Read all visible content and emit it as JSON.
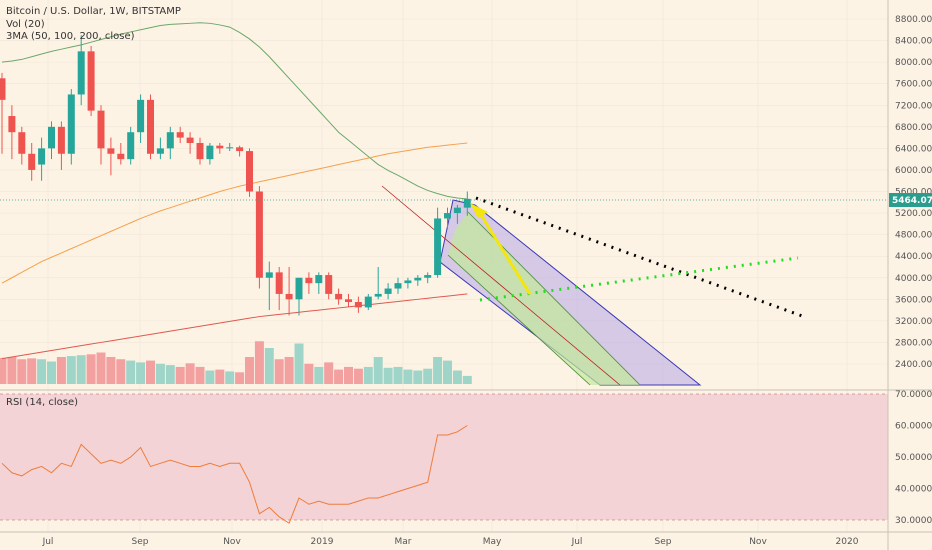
{
  "legend": {
    "title": "Bitcoin / U.S. Dollar, 1W, BITSTAMP",
    "vol": "Vol (20)",
    "ma": "3MA (50, 100, 200, close)",
    "rsi": "RSI (14, close)"
  },
  "colors": {
    "background": "#fdf3e5",
    "up": "#26a69a",
    "down": "#ef5350",
    "vol_up": "#9fd4c8",
    "vol_down": "#f2a0a0",
    "ma50": "#6aa86a",
    "ma100": "#f5a04a",
    "ma200": "#e0584f",
    "rsi_band": "#f3d3d6",
    "rsi_line": "#f07c3a",
    "price_tag": "#2a9d8f"
  },
  "chart_data": {
    "type": "candlestick",
    "title": "Bitcoin / U.S. Dollar, 1W, BITSTAMP",
    "current_price": "5464.07",
    "price_ticks": [
      "8800.00",
      "8400.00",
      "8000.00",
      "7600.00",
      "7200.00",
      "6800.00",
      "6400.00",
      "6000.00",
      "5600.00",
      "5200.00",
      "4800.00",
      "4400.00",
      "4000.00",
      "3600.00",
      "3200.00",
      "2800.00",
      "2400.00"
    ],
    "rsi_ticks": [
      "70.0000",
      "60.0000",
      "50.0000",
      "40.0000",
      "30.0000"
    ],
    "x_labels": [
      "Jul",
      "Sep",
      "Nov",
      "2019",
      "Mar",
      "May",
      "Jul",
      "Sep",
      "Nov",
      "2020"
    ],
    "candles": [
      {
        "o": 7700,
        "h": 7800,
        "l": 6300,
        "c": 7300
      },
      {
        "o": 7000,
        "h": 7200,
        "l": 6200,
        "c": 6700
      },
      {
        "o": 6700,
        "h": 6800,
        "l": 6100,
        "c": 6300
      },
      {
        "o": 6300,
        "h": 6500,
        "l": 5800,
        "c": 6000
      },
      {
        "o": 6100,
        "h": 6600,
        "l": 5800,
        "c": 6400
      },
      {
        "o": 6400,
        "h": 6900,
        "l": 6200,
        "c": 6800
      },
      {
        "o": 6800,
        "h": 6900,
        "l": 6000,
        "c": 6300
      },
      {
        "o": 6300,
        "h": 7500,
        "l": 6100,
        "c": 7400
      },
      {
        "o": 7400,
        "h": 8500,
        "l": 7200,
        "c": 8200
      },
      {
        "o": 8200,
        "h": 8300,
        "l": 7000,
        "c": 7100
      },
      {
        "o": 7100,
        "h": 7200,
        "l": 6100,
        "c": 6400
      },
      {
        "o": 6400,
        "h": 6600,
        "l": 5900,
        "c": 6300
      },
      {
        "o": 6300,
        "h": 6500,
        "l": 6100,
        "c": 6200
      },
      {
        "o": 6200,
        "h": 6800,
        "l": 6100,
        "c": 6700
      },
      {
        "o": 6700,
        "h": 7400,
        "l": 6500,
        "c": 7300
      },
      {
        "o": 7300,
        "h": 7400,
        "l": 6200,
        "c": 6300
      },
      {
        "o": 6300,
        "h": 6600,
        "l": 6200,
        "c": 6400
      },
      {
        "o": 6400,
        "h": 6800,
        "l": 6200,
        "c": 6700
      },
      {
        "o": 6700,
        "h": 6800,
        "l": 6500,
        "c": 6600
      },
      {
        "o": 6600,
        "h": 6700,
        "l": 6300,
        "c": 6500
      },
      {
        "o": 6500,
        "h": 6600,
        "l": 6100,
        "c": 6200
      },
      {
        "o": 6200,
        "h": 6500,
        "l": 6100,
        "c": 6450
      },
      {
        "o": 6450,
        "h": 6500,
        "l": 6300,
        "c": 6400
      },
      {
        "o": 6400,
        "h": 6500,
        "l": 6350,
        "c": 6420
      },
      {
        "o": 6420,
        "h": 6450,
        "l": 6250,
        "c": 6350
      },
      {
        "o": 6350,
        "h": 6400,
        "l": 5500,
        "c": 5600
      },
      {
        "o": 5600,
        "h": 5700,
        "l": 3800,
        "c": 4000
      },
      {
        "o": 4000,
        "h": 4300,
        "l": 3400,
        "c": 4100
      },
      {
        "o": 4100,
        "h": 4200,
        "l": 3400,
        "c": 3700
      },
      {
        "o": 3700,
        "h": 4200,
        "l": 3300,
        "c": 3600
      },
      {
        "o": 3600,
        "h": 4000,
        "l": 3300,
        "c": 4000
      },
      {
        "o": 4000,
        "h": 4100,
        "l": 3700,
        "c": 3900
      },
      {
        "o": 3900,
        "h": 4100,
        "l": 3700,
        "c": 4050
      },
      {
        "o": 4050,
        "h": 4100,
        "l": 3600,
        "c": 3700
      },
      {
        "o": 3700,
        "h": 3800,
        "l": 3500,
        "c": 3600
      },
      {
        "o": 3600,
        "h": 3700,
        "l": 3450,
        "c": 3550
      },
      {
        "o": 3550,
        "h": 3650,
        "l": 3350,
        "c": 3450
      },
      {
        "o": 3450,
        "h": 3700,
        "l": 3400,
        "c": 3650
      },
      {
        "o": 3650,
        "h": 4200,
        "l": 3600,
        "c": 3700
      },
      {
        "o": 3700,
        "h": 3900,
        "l": 3600,
        "c": 3800
      },
      {
        "o": 3800,
        "h": 4000,
        "l": 3700,
        "c": 3900
      },
      {
        "o": 3900,
        "h": 4000,
        "l": 3800,
        "c": 3950
      },
      {
        "o": 3950,
        "h": 4050,
        "l": 3850,
        "c": 4000
      },
      {
        "o": 4000,
        "h": 4100,
        "l": 3900,
        "c": 4050
      },
      {
        "o": 4050,
        "h": 5300,
        "l": 4000,
        "c": 5100
      },
      {
        "o": 5100,
        "h": 5300,
        "l": 4900,
        "c": 5200
      },
      {
        "o": 5200,
        "h": 5350,
        "l": 5000,
        "c": 5300
      },
      {
        "o": 5300,
        "h": 5600,
        "l": 5150,
        "c": 5464
      }
    ],
    "volumes": [
      58,
      60,
      55,
      57,
      55,
      50,
      60,
      62,
      64,
      66,
      70,
      60,
      55,
      52,
      48,
      52,
      45,
      42,
      38,
      46,
      38,
      30,
      32,
      28,
      26,
      60,
      95,
      80,
      55,
      60,
      90,
      45,
      38,
      48,
      32,
      38,
      34,
      38,
      60,
      36,
      38,
      32,
      30,
      34,
      60,
      52,
      30,
      18
    ],
    "rsi": [
      48,
      45,
      44,
      46,
      47,
      45,
      48,
      47,
      54,
      51,
      48,
      49,
      48,
      50,
      53,
      47,
      48,
      49,
      48,
      47,
      47,
      48,
      47,
      48,
      48,
      42,
      32,
      34,
      31,
      29,
      37,
      35,
      36,
      35,
      35,
      35,
      36,
      37,
      37,
      38,
      39,
      40,
      41,
      42,
      57,
      57,
      58,
      60
    ],
    "ma50": [
      8000,
      8020,
      8050,
      8100,
      8150,
      8200,
      8240,
      8280,
      8320,
      8370,
      8420,
      8470,
      8520,
      8560,
      8600,
      8640,
      8680,
      8700,
      8710,
      8720,
      8730,
      8720,
      8690,
      8650,
      8550,
      8430,
      8280,
      8100,
      7900,
      7700,
      7500,
      7300,
      7100,
      6900,
      6700,
      6550,
      6400,
      6250,
      6100,
      5990,
      5900,
      5800,
      5700,
      5620,
      5560,
      5510,
      5480,
      5460
    ],
    "ma100": [
      3900,
      4000,
      4100,
      4200,
      4300,
      4380,
      4460,
      4540,
      4620,
      4700,
      4780,
      4860,
      4940,
      5020,
      5100,
      5170,
      5240,
      5300,
      5360,
      5420,
      5480,
      5540,
      5600,
      5650,
      5700,
      5740,
      5780,
      5820,
      5860,
      5900,
      5940,
      5980,
      6020,
      6060,
      6100,
      6140,
      6180,
      6220,
      6260,
      6300,
      6330,
      6360,
      6390,
      6420,
      6440,
      6460,
      6480,
      6500
    ],
    "ma200": [
      2500,
      2530,
      2560,
      2590,
      2620,
      2650,
      2680,
      2710,
      2740,
      2770,
      2800,
      2830,
      2860,
      2890,
      2920,
      2950,
      2980,
      3010,
      3040,
      3070,
      3100,
      3130,
      3160,
      3190,
      3220,
      3250,
      3280,
      3300,
      3320,
      3340,
      3360,
      3380,
      3400,
      3420,
      3440,
      3460,
      3480,
      3500,
      3520,
      3540,
      3560,
      3580,
      3600,
      3620,
      3640,
      3660,
      3680,
      3700
    ]
  }
}
